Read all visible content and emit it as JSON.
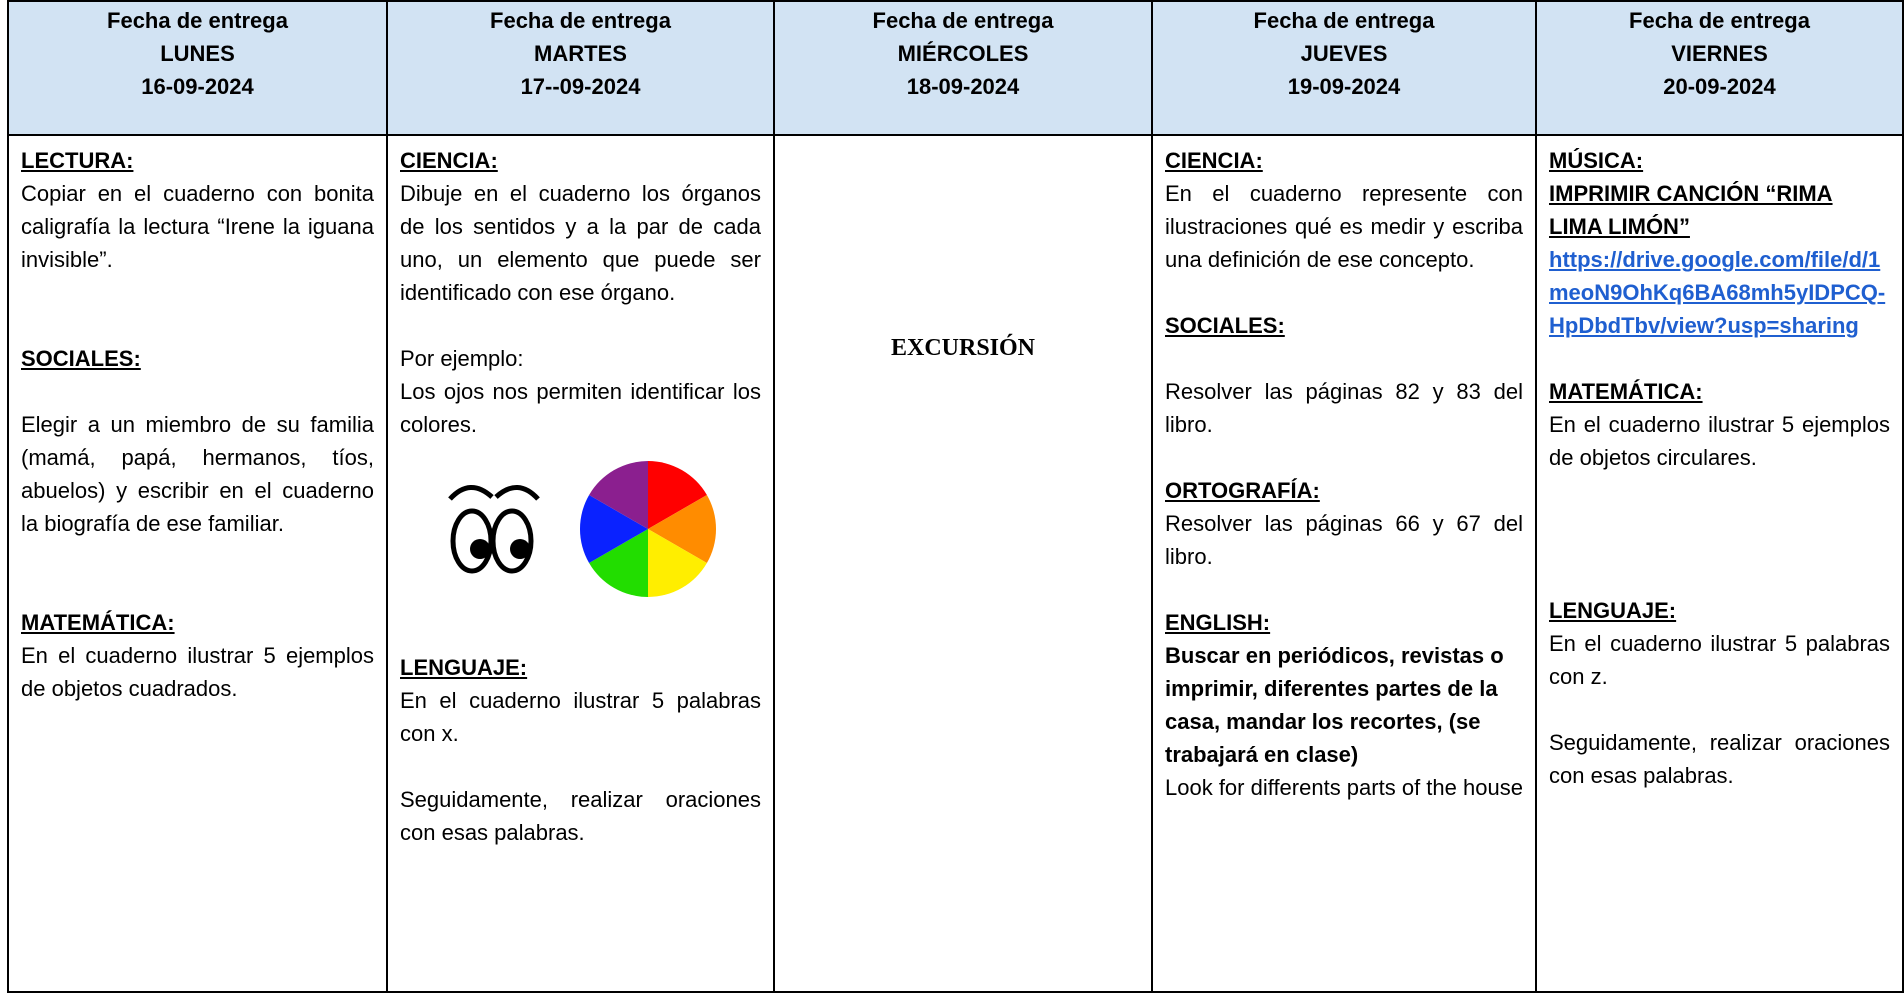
{
  "header": {
    "columns": [
      {
        "label": "Fecha de entrega",
        "day": "LUNES",
        "date": "16-09-2024"
      },
      {
        "label": "Fecha de entrega",
        "day": "MARTES",
        "date": "17--09-2024"
      },
      {
        "label": "Fecha de entrega",
        "day": "MIÉRCOLES",
        "date": "18-09-2024"
      },
      {
        "label": "Fecha de entrega",
        "day": "JUEVES",
        "date": "19-09-2024"
      },
      {
        "label": "Fecha de entrega",
        "day": "VIERNES",
        "date": "20-09-2024"
      }
    ]
  },
  "days": [
    {
      "sections": [
        {
          "heading": "LECTURA:",
          "paragraphs": [
            "Copiar en el cuaderno con bonita caligrafía la lectura “Irene la iguana invisible”."
          ]
        },
        {
          "heading": "SOCIALES:",
          "paragraphs": [
            "Elegir a un miembro de su familia (mamá, papá, hermanos, tíos, abuelos) y escribir en el cuaderno la biografía de ese familiar."
          ]
        },
        {
          "heading": "MATEMÁTICA:",
          "paragraphs": [
            "En el cuaderno ilustrar 5 ejemplos de objetos cuadrados."
          ]
        }
      ]
    },
    {
      "sections": [
        {
          "heading": "CIENCIA:",
          "paragraphs": [
            "Dibuje en el cuaderno los órganos de los sentidos y a la par de cada uno, un elemento que puede ser identificado con ese órgano.",
            "Por ejemplo:",
            "Los ojos nos permiten identificar los colores."
          ]
        },
        {
          "heading": "LENGUAJE:",
          "paragraphs": [
            "En el cuaderno ilustrar 5 palabras con x.",
            "Seguidamente, realizar oraciones con esas palabras."
          ]
        }
      ]
    },
    {
      "center": "EXCURSIÓN"
    },
    {
      "sections": [
        {
          "heading": "CIENCIA:",
          "paragraphs": [
            "En el cuaderno represente con ilustraciones qué es medir y escriba una definición de ese concepto."
          ]
        },
        {
          "heading": "SOCIALES:",
          "paragraphs": [
            "Resolver las páginas 82 y 83 del libro."
          ]
        },
        {
          "heading": "ORTOGRAFÍA:",
          "paragraphs": [
            "Resolver las páginas 66 y 67 del libro."
          ]
        },
        {
          "heading": "ENGLISH:",
          "bold_text": "Buscar en periódicos, revistas o imprimir, diferentes partes de la casa, mandar los recortes, (se trabajará en clase)",
          "paragraphs": [
            "Look for differents parts of the house"
          ]
        }
      ]
    },
    {
      "sections": [
        {
          "heading": "MÚSICA:",
          "subheading": "IMPRIMIR CANCIÓN “RIMA LIMA LIMÓN”",
          "link": "https://drive.google.com/file/d/1meoN9OhKq6BA68mh5yIDPCQ-HpDbdTbv/view?usp=sharing"
        },
        {
          "heading": "MATEMÁTICA:",
          "paragraphs": [
            "En el cuaderno ilustrar 5 ejemplos de objetos circulares."
          ]
        },
        {
          "heading": "LENGUAJE:",
          "paragraphs": [
            "En el cuaderno ilustrar 5 palabras con z.",
            "Seguidamente, realizar oraciones con esas palabras."
          ]
        }
      ]
    }
  ]
}
